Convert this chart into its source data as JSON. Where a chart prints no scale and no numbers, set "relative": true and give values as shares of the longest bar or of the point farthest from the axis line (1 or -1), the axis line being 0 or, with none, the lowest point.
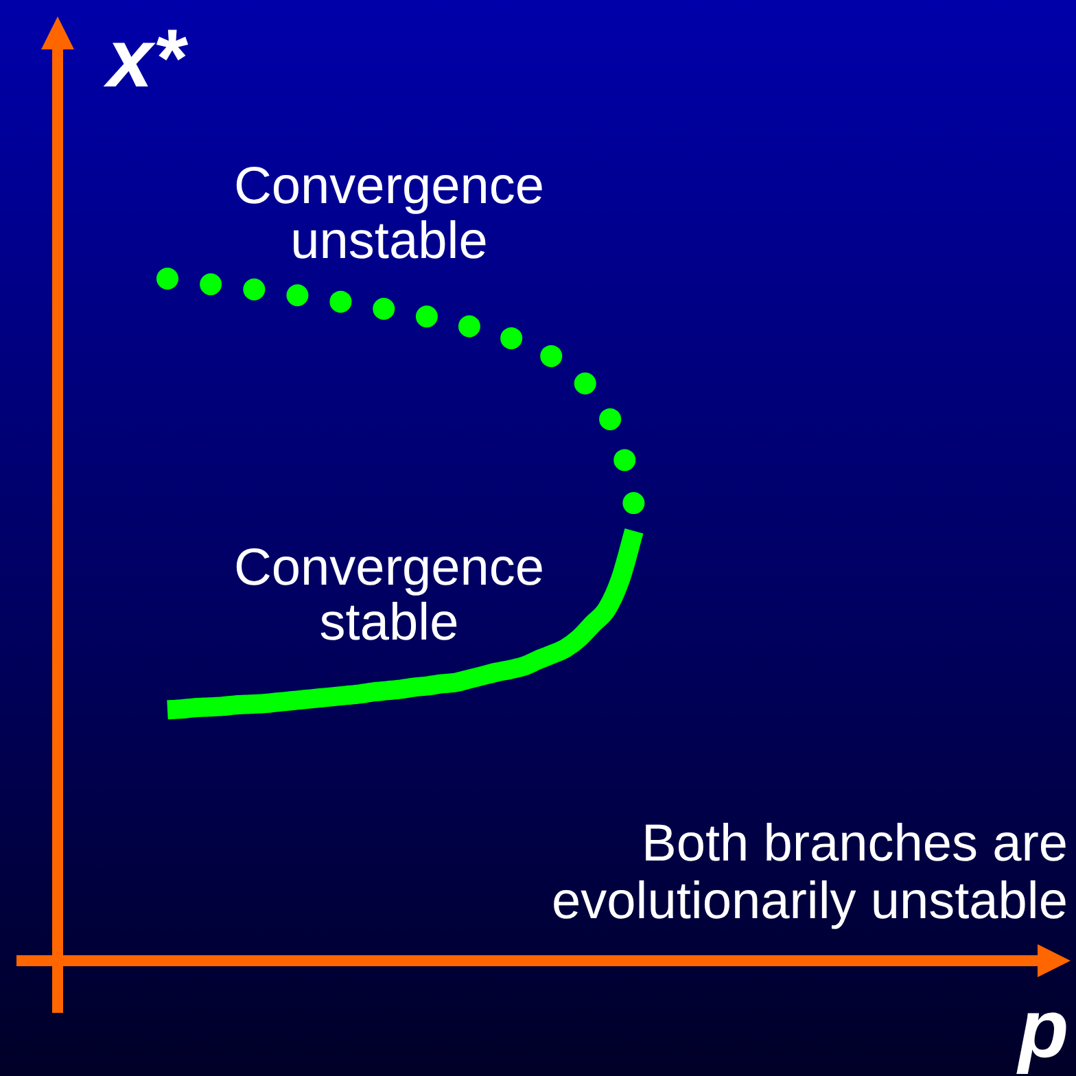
{
  "chart_data": {
    "type": "line",
    "xlabel": "p",
    "ylabel": "x*",
    "relative": true,
    "categories": [
      null,
      null,
      null,
      null,
      null,
      null,
      null,
      null,
      null,
      null,
      null,
      null,
      null,
      null,
      null,
      null,
      null,
      null,
      null,
      null,
      null,
      null,
      null,
      null,
      null,
      null,
      null,
      null,
      null,
      null,
      null,
      null,
      null,
      null,
      null,
      null,
      null,
      null,
      null,
      null,
      null,
      null,
      null,
      null,
      null,
      null,
      null,
      null,
      null,
      null,
      null,
      null,
      null,
      null,
      null,
      null,
      null,
      null,
      null,
      null,
      null,
      null,
      null,
      null,
      null,
      null,
      null,
      null,
      null,
      null,
      null,
      null,
      null
    ],
    "series": [
      {
        "name": "Convergence unstable",
        "color": "#00ff00",
        "line_style": "dotted",
        "values": [
          null,
          null,
          null,
          null,
          null,
          null,
          null,
          null,
          1,
          0.997,
          0.995,
          0.992,
          0.99,
          0.987,
          0.985,
          0.982,
          0.98,
          0.977,
          0.974,
          0.971,
          0.968,
          0.965,
          0.962,
          0.958,
          0.955,
          0.952,
          0.948,
          0.944,
          0.939,
          0.935,
          0.93,
          0.924,
          0.918,
          0.913,
          0.904,
          0.895,
          0.886,
          0.871,
          0.855,
          0.833,
          0.803,
          0.759,
          0.668,
          null,
          null,
          null,
          null,
          null,
          null,
          null,
          null,
          null,
          null,
          null,
          null,
          null,
          null,
          null,
          null,
          null,
          null,
          null,
          null,
          null,
          null,
          null,
          null,
          null,
          null,
          null,
          null,
          null,
          null
        ]
      },
      {
        "name": "Convergence stable",
        "color": "#00ff00",
        "line_style": "solid",
        "values": [
          null,
          null,
          null,
          null,
          null,
          null,
          null,
          null,
          0.368,
          0.369,
          0.371,
          0.372,
          0.373,
          0.375,
          0.376,
          0.377,
          0.379,
          0.381,
          0.383,
          0.385,
          0.387,
          0.389,
          0.391,
          0.394,
          0.396,
          0.398,
          0.401,
          0.403,
          0.406,
          0.408,
          0.413,
          0.418,
          0.423,
          0.427,
          0.432,
          0.441,
          0.449,
          0.458,
          0.473,
          0.494,
          0.515,
          0.559,
          0.63,
          null,
          null,
          null,
          null,
          null,
          null,
          null,
          null,
          null,
          null,
          null,
          null,
          null,
          null,
          null,
          null,
          null,
          null,
          null,
          null,
          null,
          null,
          null,
          null,
          null,
          null,
          null,
          null,
          null,
          null
        ]
      }
    ],
    "annotations": [
      "Both branches are evolutionarily unstable"
    ]
  }
}
